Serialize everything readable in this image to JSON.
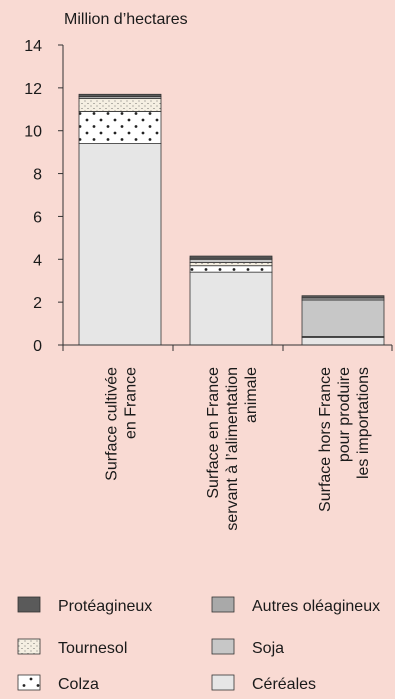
{
  "chart_data": {
    "type": "bar",
    "stacked": true,
    "ylabel": "Million d’hectares",
    "ylim": [
      0,
      14
    ],
    "yticks": [
      0,
      2,
      4,
      6,
      8,
      10,
      12,
      14
    ],
    "grid": false,
    "legend_position": "bottom",
    "categories": [
      [
        "Surface cultivée",
        "en France"
      ],
      [
        "Surface en France",
        "servant à l’alimentation",
        "animale"
      ],
      [
        "Surface hors France",
        "pour produire",
        "les importations"
      ]
    ],
    "series": [
      {
        "name": "Céréales",
        "pattern": "plain",
        "color": "#e6e6e6",
        "values": [
          9.4,
          3.4,
          0.35
        ]
      },
      {
        "name": "Colza",
        "pattern": "dots",
        "color": "#ffffff",
        "values": [
          1.5,
          0.3,
          0.05
        ]
      },
      {
        "name": "Tournesol",
        "pattern": "stipple",
        "color": "#f5efe2",
        "values": [
          0.6,
          0.15,
          0.0
        ]
      },
      {
        "name": "Soja",
        "pattern": "plain",
        "color": "#c7c7c7",
        "values": [
          0.0,
          0.15,
          1.7
        ]
      },
      {
        "name": "Autres oléagineux",
        "pattern": "plain",
        "color": "#a9a9a9",
        "values": [
          0.1,
          0.05,
          0.1
        ]
      },
      {
        "name": "Protéagineux",
        "pattern": "plain",
        "color": "#5a5a5a",
        "values": [
          0.1,
          0.1,
          0.1
        ]
      }
    ],
    "legend_layout": [
      [
        "Protéagineux",
        "Autres oléagineux"
      ],
      [
        "Tournesol",
        "Soja"
      ],
      [
        "Colza",
        "Céréales"
      ]
    ]
  }
}
